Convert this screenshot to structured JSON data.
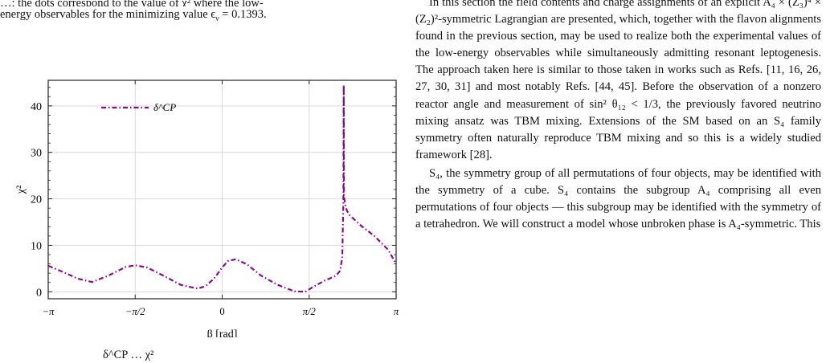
{
  "left_column": {
    "caption_top_cut": "…; the dots correspond to the value of χ² where the low-",
    "caption_top": "energy observables for the minimizing value ϵ",
    "caption_top_sub": "ν",
    "caption_top_tail": " = 0.1393.",
    "caption_bottom_cut": "δ^CP … χ²"
  },
  "chart_data": {
    "type": "line",
    "xlabel": "β [rad]",
    "ylabel": "χ²",
    "xlim": [
      -3.1416,
      3.1416
    ],
    "ylim": [
      -1.5,
      45.5
    ],
    "x_ticks": [
      "−π",
      "−π/2",
      "0",
      "π/2",
      "π"
    ],
    "y_ticks": [
      "0",
      "10",
      "20",
      "30",
      "40"
    ],
    "grid": true,
    "legend_placement": "top-left",
    "color": "#8b0a8b",
    "series": [
      {
        "name": "δ^CP",
        "x": [
          -3.1416,
          -2.9,
          -2.6,
          -2.35,
          -2.05,
          -1.75,
          -1.57,
          -1.35,
          -1.05,
          -0.75,
          -0.45,
          -0.3,
          -0.15,
          0.0,
          0.1,
          0.25,
          0.45,
          0.7,
          1.0,
          1.3,
          1.5,
          1.65,
          1.85,
          2.05,
          2.13,
          2.17,
          2.19,
          2.195,
          2.2,
          2.22,
          2.25,
          2.3,
          2.5,
          2.75,
          3.0,
          3.1416
        ],
        "y": [
          5.6,
          4.4,
          2.8,
          2.1,
          3.5,
          5.3,
          5.7,
          5.2,
          3.4,
          1.5,
          0.7,
          1.2,
          2.8,
          5.2,
          6.6,
          7.0,
          5.9,
          3.5,
          1.5,
          0.1,
          0.0,
          1.1,
          2.4,
          3.4,
          4.5,
          7.5,
          20.0,
          44.5,
          20.5,
          19.0,
          17.5,
          16.5,
          14.3,
          12.0,
          9.0,
          6.0
        ]
      }
    ]
  },
  "right_column": {
    "paragraphs": [
      "In this section the field contents and charge assignments of an explicit A₄ × (Z₃)⁴ × (Z₂)²-symmetric Lagrangian are presented, which, together with the flavon alignments found in the previous section, may be used to realize both the experimental values of the low-energy observables while simultaneously admitting resonant leptogenesis. The approach taken here is similar to those taken in works such as Refs. [11, 16, 26, 27, 30, 31] and most notably Refs. [44, 45]. Before the observation of a nonzero reactor angle and measurement of sin² θ₁₂ < 1/3, the previously favored neutrino mixing ansatz was TBM mixing. Extensions of the SM based on an S₄ family symmetry often naturally reproduce TBM mixing and so this is a widely studied framework [28].",
      "S₄, the symmetry group of all permutations of four objects, may be identified with the symmetry of a cube. S₄ contains the subgroup A₄ comprising all even permutations of four objects — this subgroup may be identified with the symmetry of a tetrahedron. We will construct a model whose unbroken phase is A₄-symmetric. This"
    ]
  }
}
